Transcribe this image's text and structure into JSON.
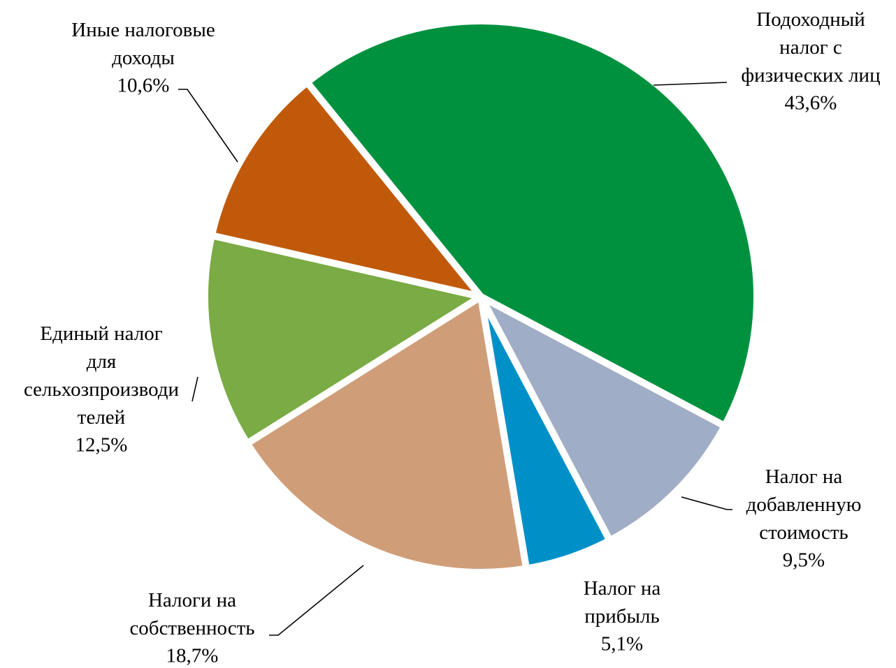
{
  "chart_data": {
    "type": "pie",
    "categories": [
      "Подоходный\nналог с\nфизических лиц",
      "Налог на\nдобавленную\nстоимость",
      "Налог на\nприбыль",
      "Налоги на\nсобственность",
      "Единый налог\nдля\nсельхозпроизводи\nтелей",
      "Иные налоговые\nдоходы"
    ],
    "values": [
      43.6,
      9.5,
      5.1,
      18.7,
      12.5,
      10.6
    ],
    "value_labels": [
      "43,6%",
      "9,5%",
      "5,1%",
      "18,7%",
      "12,5%",
      "10,6%"
    ],
    "colors": [
      "#00913f",
      "#a0adc6",
      "#0090c8",
      "#cf9e78",
      "#7aab44",
      "#c05a0a"
    ]
  }
}
